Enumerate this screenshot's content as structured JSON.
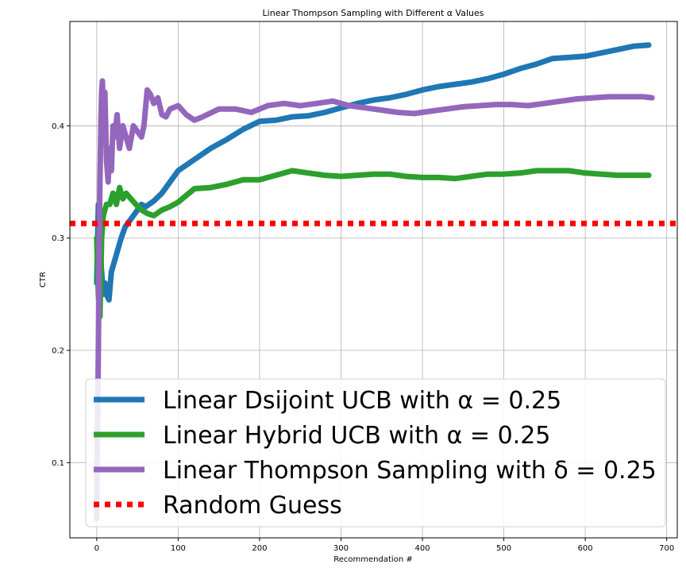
{
  "chart_data": {
    "type": "line",
    "title": "Linear Thompson Sampling with Different α Values",
    "xlabel": "Recommendation #",
    "ylabel": "CTR",
    "xlim": [
      -33,
      713
    ],
    "ylim": [
      0.033,
      0.493
    ],
    "xticks": [
      0,
      100,
      200,
      300,
      400,
      500,
      600,
      700
    ],
    "yticks": [
      0.1,
      0.2,
      0.3,
      0.4
    ],
    "grid": true,
    "legend_position": "lower-left",
    "series": [
      {
        "name": "Linear Dsijoint UCB with α = 0.25",
        "color": "#1f77b4",
        "points": [
          [
            0,
            0.26
          ],
          [
            2,
            0.33
          ],
          [
            4,
            0.29
          ],
          [
            6,
            0.27
          ],
          [
            8,
            0.25
          ],
          [
            10,
            0.26
          ],
          [
            12,
            0.25
          ],
          [
            15,
            0.245
          ],
          [
            18,
            0.27
          ],
          [
            22,
            0.28
          ],
          [
            26,
            0.29
          ],
          [
            30,
            0.3
          ],
          [
            35,
            0.31
          ],
          [
            40,
            0.315
          ],
          [
            45,
            0.32
          ],
          [
            50,
            0.325
          ],
          [
            55,
            0.33
          ],
          [
            60,
            0.328
          ],
          [
            70,
            0.333
          ],
          [
            80,
            0.34
          ],
          [
            90,
            0.35
          ],
          [
            100,
            0.36
          ],
          [
            120,
            0.37
          ],
          [
            140,
            0.38
          ],
          [
            160,
            0.388
          ],
          [
            180,
            0.397
          ],
          [
            200,
            0.404
          ],
          [
            220,
            0.405
          ],
          [
            240,
            0.408
          ],
          [
            260,
            0.409
          ],
          [
            280,
            0.412
          ],
          [
            300,
            0.416
          ],
          [
            320,
            0.42
          ],
          [
            340,
            0.423
          ],
          [
            360,
            0.425
          ],
          [
            380,
            0.428
          ],
          [
            400,
            0.432
          ],
          [
            420,
            0.435
          ],
          [
            440,
            0.437
          ],
          [
            460,
            0.439
          ],
          [
            480,
            0.442
          ],
          [
            500,
            0.446
          ],
          [
            520,
            0.451
          ],
          [
            540,
            0.455
          ],
          [
            560,
            0.46
          ],
          [
            580,
            0.461
          ],
          [
            600,
            0.462
          ],
          [
            620,
            0.465
          ],
          [
            640,
            0.468
          ],
          [
            660,
            0.471
          ],
          [
            678,
            0.472
          ]
        ]
      },
      {
        "name": "Linear Hybrid UCB with α = 0.25",
        "color": "#2ca02c",
        "points": [
          [
            0,
            0.3
          ],
          [
            2,
            0.25
          ],
          [
            4,
            0.23
          ],
          [
            6,
            0.3
          ],
          [
            8,
            0.32
          ],
          [
            12,
            0.33
          ],
          [
            16,
            0.33
          ],
          [
            20,
            0.34
          ],
          [
            24,
            0.33
          ],
          [
            28,
            0.345
          ],
          [
            32,
            0.335
          ],
          [
            36,
            0.34
          ],
          [
            42,
            0.335
          ],
          [
            48,
            0.33
          ],
          [
            55,
            0.325
          ],
          [
            62,
            0.322
          ],
          [
            70,
            0.32
          ],
          [
            80,
            0.325
          ],
          [
            90,
            0.328
          ],
          [
            100,
            0.332
          ],
          [
            110,
            0.338
          ],
          [
            120,
            0.344
          ],
          [
            140,
            0.345
          ],
          [
            160,
            0.348
          ],
          [
            180,
            0.352
          ],
          [
            200,
            0.352
          ],
          [
            220,
            0.356
          ],
          [
            240,
            0.36
          ],
          [
            260,
            0.358
          ],
          [
            280,
            0.356
          ],
          [
            300,
            0.355
          ],
          [
            320,
            0.356
          ],
          [
            340,
            0.357
          ],
          [
            360,
            0.357
          ],
          [
            380,
            0.355
          ],
          [
            400,
            0.354
          ],
          [
            420,
            0.354
          ],
          [
            440,
            0.353
          ],
          [
            460,
            0.355
          ],
          [
            480,
            0.357
          ],
          [
            500,
            0.357
          ],
          [
            520,
            0.358
          ],
          [
            540,
            0.36
          ],
          [
            560,
            0.36
          ],
          [
            580,
            0.36
          ],
          [
            600,
            0.358
          ],
          [
            620,
            0.357
          ],
          [
            640,
            0.356
          ],
          [
            660,
            0.356
          ],
          [
            678,
            0.356
          ]
        ]
      },
      {
        "name": "Linear Thompson Sampling with δ = 0.25",
        "color": "#9467bd",
        "points": [
          [
            0,
            0.05
          ],
          [
            1,
            0.14
          ],
          [
            2,
            0.2
          ],
          [
            3,
            0.3
          ],
          [
            4,
            0.35
          ],
          [
            5,
            0.4
          ],
          [
            6,
            0.43
          ],
          [
            7,
            0.44
          ],
          [
            8,
            0.41
          ],
          [
            9,
            0.39
          ],
          [
            10,
            0.43
          ],
          [
            12,
            0.37
          ],
          [
            14,
            0.35
          ],
          [
            16,
            0.38
          ],
          [
            18,
            0.36
          ],
          [
            20,
            0.4
          ],
          [
            22,
            0.39
          ],
          [
            25,
            0.41
          ],
          [
            28,
            0.38
          ],
          [
            32,
            0.4
          ],
          [
            36,
            0.39
          ],
          [
            40,
            0.38
          ],
          [
            45,
            0.4
          ],
          [
            50,
            0.395
          ],
          [
            55,
            0.39
          ],
          [
            58,
            0.4
          ],
          [
            62,
            0.432
          ],
          [
            66,
            0.428
          ],
          [
            70,
            0.42
          ],
          [
            75,
            0.425
          ],
          [
            80,
            0.41
          ],
          [
            85,
            0.408
          ],
          [
            90,
            0.415
          ],
          [
            100,
            0.418
          ],
          [
            110,
            0.41
          ],
          [
            120,
            0.405
          ],
          [
            130,
            0.408
          ],
          [
            150,
            0.415
          ],
          [
            170,
            0.415
          ],
          [
            190,
            0.412
          ],
          [
            210,
            0.418
          ],
          [
            230,
            0.42
          ],
          [
            250,
            0.418
          ],
          [
            270,
            0.42
          ],
          [
            290,
            0.422
          ],
          [
            310,
            0.418
          ],
          [
            330,
            0.416
          ],
          [
            350,
            0.414
          ],
          [
            370,
            0.412
          ],
          [
            390,
            0.411
          ],
          [
            410,
            0.413
          ],
          [
            430,
            0.415
          ],
          [
            450,
            0.417
          ],
          [
            470,
            0.418
          ],
          [
            490,
            0.419
          ],
          [
            510,
            0.419
          ],
          [
            530,
            0.418
          ],
          [
            550,
            0.42
          ],
          [
            570,
            0.422
          ],
          [
            590,
            0.424
          ],
          [
            610,
            0.425
          ],
          [
            630,
            0.426
          ],
          [
            650,
            0.426
          ],
          [
            670,
            0.426
          ],
          [
            682,
            0.425
          ]
        ]
      },
      {
        "name": "Random Guess",
        "color": "#ff0000",
        "style": "dotted",
        "points": [
          [
            -33,
            0.313
          ],
          [
            713,
            0.313
          ]
        ]
      }
    ]
  }
}
